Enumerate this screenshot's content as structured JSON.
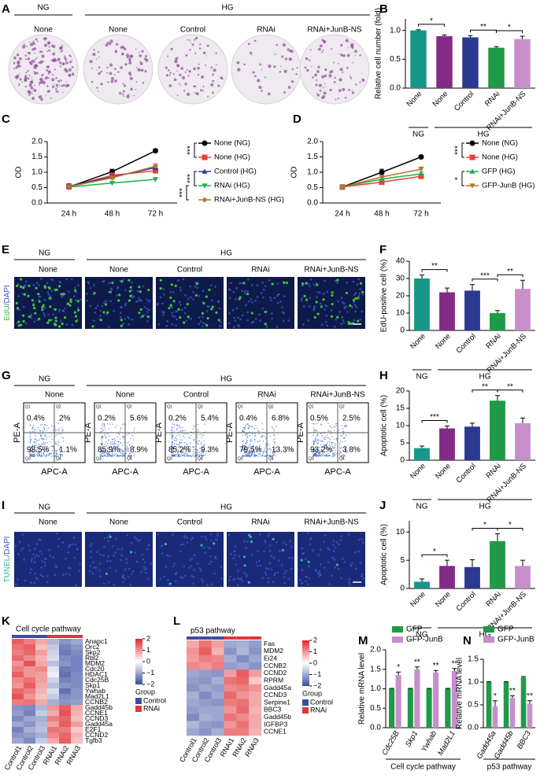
{
  "panel_letters": [
    "A",
    "B",
    "C",
    "D",
    "E",
    "F",
    "G",
    "H",
    "I",
    "J",
    "K",
    "L",
    "M",
    "N"
  ],
  "image_panels": [
    {
      "group_labels": [
        "NG",
        "HG"
      ],
      "conditions": [
        "None",
        "None",
        "Control",
        "RNAi",
        "RNAi+JunB-NS"
      ]
    },
    {
      "group_labels": [
        "NG",
        "HG"
      ],
      "conditions": [
        "None",
        "None",
        "Control",
        "RNAi",
        "RNAi+JunB-NS"
      ],
      "stain": [
        "EdU",
        "/DAPI"
      ],
      "stain_colors": [
        "#3ec43e",
        "#3a57c4"
      ]
    },
    {
      "group_labels": [
        "NG",
        "HG"
      ],
      "conditions": [
        "None",
        "None",
        "Control",
        "RNAi",
        "RNAi+JunB-NS"
      ],
      "stain": [
        "TUNEL",
        "/DAPI"
      ],
      "stain_colors": [
        "#2fb39a",
        "#3a57c4"
      ]
    }
  ],
  "flow": {
    "group_labels": [
      "NG",
      "HG"
    ],
    "conditions": [
      "None",
      "None",
      "Control",
      "RNAi",
      "RNAi+JunB-NS"
    ],
    "y_label": "PE-A",
    "x_label": "APC-A",
    "quadrants": [
      "Q1",
      "Q2",
      "Q3",
      "Q4"
    ],
    "percentages": [
      [
        "0.4%",
        "2%",
        "98.5%",
        "1.1%"
      ],
      [
        "0.2%",
        "5.6%",
        "85.9%",
        "8.9%"
      ],
      [
        "0.2%",
        "5.4%",
        "85.2%",
        "9.3%"
      ],
      [
        "0.4%",
        "6.8%",
        "79.5%",
        "13.3%"
      ],
      [
        "0.5%",
        "2.5%",
        "93.2%",
        "3.8%"
      ]
    ]
  },
  "chart_data": [
    {
      "type": "bar",
      "y_label": "Relative cell number (fold)",
      "categories": [
        "None",
        "None",
        "Control",
        "RNAi",
        "RNAi+JunB-NS"
      ],
      "colors": [
        "#17968c",
        "#862a88",
        "#2b3990",
        "#1f9a48",
        "#c78fc9"
      ],
      "values": [
        1.0,
        0.9,
        0.88,
        0.7,
        0.85
      ],
      "errors": [
        0.01,
        0.02,
        0.03,
        0.02,
        0.05
      ],
      "ylim": [
        0,
        1.2
      ],
      "yticks": [
        {
          "value": 0,
          "label": "0.0"
        },
        0.5,
        {
          "value": 1,
          "label": "1.0"
        }
      ],
      "significance": [
        {
          "from": 0,
          "to": 1,
          "label": "*"
        },
        {
          "from": 2,
          "to": 3,
          "label": "**"
        },
        {
          "from": 3,
          "to": 4,
          "label": "*"
        }
      ],
      "groups": [
        {
          "label": "NG",
          "from": 0,
          "to": 0
        },
        {
          "label": "HG",
          "from": 1,
          "to": 4
        }
      ]
    },
    {
      "type": "line",
      "y_label": "OD",
      "categories": [
        "24 h",
        "48 h",
        "72 h"
      ],
      "ylim": [
        0,
        2
      ],
      "yticks": [
        {
          "value": 0,
          "label": "0.0"
        },
        0.5,
        {
          "value": 1,
          "label": "1.0"
        },
        1.5,
        {
          "value": 2,
          "label": "2.0"
        }
      ],
      "series": [
        {
          "name": "None (NG)",
          "color": "#000000",
          "marker": "circle",
          "values": [
            0.52,
            1.02,
            1.7
          ],
          "errors": [
            0.05,
            0.08,
            0.06
          ]
        },
        {
          "name": "None (HG)",
          "color": "#e8413c",
          "marker": "square",
          "values": [
            0.53,
            0.9,
            1.05
          ],
          "errors": [
            0.04,
            0.06,
            0.07
          ]
        },
        {
          "name": "Control (HG)",
          "color": "#2b3990",
          "marker": "triangle",
          "values": [
            0.55,
            0.85,
            1.15
          ],
          "errors": [
            0.08,
            0.07,
            0.08
          ]
        },
        {
          "name": "RNAi (HG)",
          "color": "#1fb04b",
          "marker": "triangle-down",
          "values": [
            0.52,
            0.65,
            0.77
          ],
          "errors": [
            0.03,
            0.04,
            0.05
          ]
        },
        {
          "name": "RNAi+JunB-NS (HG)",
          "color": "#b5752f",
          "marker": "diamond",
          "values": [
            0.53,
            0.82,
            1.2
          ],
          "errors": [
            0.04,
            0.06,
            0.08
          ]
        }
      ],
      "significance": [
        {
          "from": 0,
          "to": 1,
          "label": "***"
        },
        {
          "from": 2,
          "to": 3,
          "label": "***"
        },
        {
          "from": 3,
          "to": 4,
          "label": "***"
        }
      ]
    },
    {
      "type": "line",
      "y_label": "OD",
      "categories": [
        "24 h",
        "48 h",
        "72 h"
      ],
      "ylim": [
        0,
        2
      ],
      "yticks": [
        {
          "value": 0,
          "label": "0.0"
        },
        0.5,
        {
          "value": 1,
          "label": "1.0"
        },
        1.5,
        {
          "value": 2,
          "label": "2.0"
        }
      ],
      "series": [
        {
          "name": "None (NG)",
          "color": "#000000",
          "marker": "circle",
          "values": [
            0.52,
            1.0,
            1.5
          ],
          "errors": [
            0.05,
            0.1,
            0.05
          ]
        },
        {
          "name": "None (HG)",
          "color": "#e8413c",
          "marker": "square",
          "values": [
            0.52,
            0.68,
            0.87
          ],
          "errors": [
            0.04,
            0.05,
            0.05
          ]
        },
        {
          "name": "GFP (HG)",
          "color": "#1fb04b",
          "marker": "triangle",
          "values": [
            0.52,
            0.78,
            0.95
          ],
          "errors": [
            0.04,
            0.05,
            0.06
          ]
        },
        {
          "name": "GFP-JunB (HG)",
          "color": "#b5752f",
          "marker": "triangle-down",
          "values": [
            0.52,
            0.85,
            1.1
          ],
          "errors": [
            0.04,
            0.06,
            0.07
          ]
        }
      ],
      "significance": [
        {
          "from": 0,
          "to": 1,
          "label": "***"
        },
        {
          "from": 2,
          "to": 3,
          "label": "*"
        }
      ]
    },
    {
      "type": "bar",
      "y_label": "EdU-positive cell (%)",
      "categories": [
        "None",
        "None",
        "Control",
        "RNAi",
        "RNAi+JunB-NS"
      ],
      "colors": [
        "#17968c",
        "#862a88",
        "#2b3990",
        "#1f9a48",
        "#c78fc9"
      ],
      "values": [
        30,
        22,
        23,
        10,
        24
      ],
      "errors": [
        2,
        2.5,
        3.5,
        1.5,
        5
      ],
      "ylim": [
        0,
        40
      ],
      "yticks": [
        0,
        10,
        20,
        30,
        40
      ],
      "significance": [
        {
          "from": 0,
          "to": 1,
          "label": "**"
        },
        {
          "from": 2,
          "to": 3,
          "label": "***"
        },
        {
          "from": 3,
          "to": 4,
          "label": "**"
        }
      ],
      "groups": [
        {
          "label": "NG",
          "from": 0,
          "to": 0
        },
        {
          "label": "HG",
          "from": 1,
          "to": 4
        }
      ]
    },
    {
      "type": "bar",
      "y_label": "Apoptotic cell (%)",
      "categories": [
        "None",
        "None",
        "Control",
        "RNAi",
        "RNAi+JunB-NS"
      ],
      "colors": [
        "#17968c",
        "#862a88",
        "#2b3990",
        "#1f9a48",
        "#c78fc9"
      ],
      "values": [
        3.5,
        9.2,
        9.7,
        17.2,
        10.7
      ],
      "errors": [
        0.6,
        0.7,
        1.0,
        1.5,
        1.5
      ],
      "ylim": [
        0,
        20
      ],
      "yticks": [
        0,
        5,
        10,
        15,
        20
      ],
      "significance": [
        {
          "from": 0,
          "to": 1,
          "label": "***"
        },
        {
          "from": 2,
          "to": 3,
          "label": "**"
        },
        {
          "from": 3,
          "to": 4,
          "label": "**"
        }
      ],
      "groups": [
        {
          "label": "NG",
          "from": 0,
          "to": 0
        },
        {
          "label": "HG",
          "from": 1,
          "to": 4
        }
      ]
    },
    {
      "type": "bar",
      "y_label": "Apoptotic cell (%)",
      "categories": [
        "None",
        "None",
        "Control",
        "RNAi",
        "RNAi+JunB-NS"
      ],
      "colors": [
        "#17968c",
        "#862a88",
        "#2b3990",
        "#1f9a48",
        "#c78fc9"
      ],
      "values": [
        1.2,
        4.0,
        3.8,
        8.4,
        4.0
      ],
      "errors": [
        0.5,
        1.0,
        1.3,
        1.3,
        1.0
      ],
      "ylim": [
        0,
        12
      ],
      "yticks": [
        0,
        5,
        10
      ],
      "significance": [
        {
          "from": 0,
          "to": 1,
          "label": "*"
        },
        {
          "from": 2,
          "to": 3,
          "label": "*"
        },
        {
          "from": 3,
          "to": 4,
          "label": "*"
        }
      ],
      "groups": [
        {
          "label": "NG",
          "from": 0,
          "to": 0
        },
        {
          "label": "HG",
          "from": 1,
          "to": 4
        }
      ]
    },
    {
      "type": "heatmap",
      "title": "Cell cycle pathway",
      "columns": [
        "Control1",
        "Control2",
        "Control3",
        "RNAi1",
        "RNAi2",
        "RNAi3"
      ],
      "rows": [
        "Anapc1",
        "Orc2",
        "Skp2",
        "Rbl2",
        "MDM2",
        "Cdc20",
        "HDAC1",
        "Cdc25B",
        "Skp1",
        "Ywhab",
        "Mad2L1",
        "CCNB2",
        "Gadd45b",
        "CCNE1",
        "CCND3",
        "Gadd45a",
        "E2F1",
        "CCND2",
        "Tgfb3"
      ],
      "values": [
        [
          1.5,
          1.2,
          0.8,
          -0.8,
          -1.2,
          -1.0
        ],
        [
          1.3,
          1.5,
          0.6,
          -0.6,
          -1.4,
          -1.2
        ],
        [
          1.2,
          1.4,
          0.9,
          -0.5,
          -1.5,
          -1.3
        ],
        [
          1.4,
          1.1,
          0.7,
          -0.4,
          -1.3,
          -1.4
        ],
        [
          1.0,
          1.6,
          0.8,
          -0.7,
          -1.2,
          -1.4
        ],
        [
          1.2,
          1.0,
          1.1,
          -0.3,
          -1.5,
          -1.4
        ],
        [
          1.5,
          1.0,
          0.9,
          -0.2,
          -1.6,
          -1.3
        ],
        [
          1.1,
          1.3,
          0.9,
          -0.5,
          -1.4,
          -1.3
        ],
        [
          1.0,
          1.5,
          0.8,
          -0.7,
          -1.2,
          -1.3
        ],
        [
          1.4,
          1.2,
          0.7,
          -0.4,
          -1.6,
          -1.2
        ],
        [
          1.6,
          1.0,
          0.6,
          -0.6,
          -1.3,
          -1.2
        ],
        [
          1.2,
          1.3,
          0.8,
          -0.9,
          -1.2,
          -1.1
        ],
        [
          -1.2,
          -1.3,
          -0.8,
          1.0,
          1.5,
          0.8
        ],
        [
          -1.1,
          -1.4,
          -0.6,
          0.8,
          1.6,
          0.7
        ],
        [
          -1.3,
          -1.0,
          -0.9,
          1.2,
          1.4,
          0.6
        ],
        [
          -1.0,
          -1.2,
          -0.8,
          0.9,
          1.5,
          0.9
        ],
        [
          -1.4,
          -0.9,
          -0.7,
          1.3,
          1.2,
          0.5
        ],
        [
          -1.2,
          -1.1,
          -0.9,
          1.1,
          1.4,
          0.7
        ],
        [
          -1.0,
          -1.3,
          -0.6,
          0.8,
          1.5,
          0.6
        ]
      ],
      "zlim": [
        -2,
        2
      ],
      "colorscale": [
        "#3a4ea0",
        "#ffffff",
        "#e0282c"
      ],
      "colorbar_ticks": [
        2,
        1,
        0,
        {
          "value": -1,
          "label": "−1"
        },
        {
          "value": -2,
          "label": "−2"
        }
      ],
      "legend_title": "Group",
      "groups": [
        {
          "name": "Control",
          "color": "#3b4d9c"
        },
        {
          "name": "RNAi",
          "color": "#e0363a"
        }
      ],
      "column_groups": [
        0,
        0,
        0,
        1,
        1,
        1
      ],
      "highlight_rows": [
        7,
        8,
        9,
        10,
        15
      ],
      "highlight_color": "#e0282c"
    },
    {
      "type": "heatmap",
      "title": "p53 pathway",
      "columns": [
        "Control1",
        "Control2",
        "Control3",
        "RNAi1",
        "RNAi2",
        "RNAi3"
      ],
      "rows": [
        "Fas",
        "MDM2",
        "Ei24",
        "CCNB2",
        "CCND2",
        "RPRM",
        "Gadd45a",
        "CCND3",
        "Serpine1",
        "BBC3",
        "Gadd45b",
        "IGFBP3",
        "CCNE1"
      ],
      "values": [
        [
          0.8,
          1.3,
          0.9,
          -1.0,
          -0.9,
          -1.1
        ],
        [
          1.0,
          1.5,
          0.7,
          -1.2,
          -0.8,
          -1.2
        ],
        [
          0.9,
          1.2,
          1.1,
          -0.9,
          -1.3,
          -1.0
        ],
        [
          1.1,
          1.0,
          1.2,
          -1.1,
          -1.0,
          -1.2
        ],
        [
          -1.0,
          -1.1,
          -1.2,
          0.9,
          1.5,
          0.9
        ],
        [
          -1.1,
          -1.2,
          -0.9,
          1.3,
          1.4,
          0.5
        ],
        [
          -1.2,
          -1.0,
          -1.1,
          1.1,
          1.2,
          1.0
        ],
        [
          -0.9,
          -1.3,
          -1.0,
          1.4,
          1.0,
          0.8
        ],
        [
          -1.0,
          -1.1,
          -1.2,
          1.2,
          1.3,
          0.8
        ],
        [
          -1.1,
          -1.0,
          -1.0,
          1.0,
          1.4,
          0.7
        ],
        [
          -1.3,
          -0.9,
          -1.0,
          1.3,
          1.1,
          0.8
        ],
        [
          -0.8,
          -1.1,
          -1.2,
          1.0,
          1.3,
          0.8
        ],
        [
          -1.0,
          -1.2,
          -0.9,
          1.2,
          1.2,
          0.7
        ]
      ],
      "zlim": [
        -2,
        2
      ],
      "colorscale": [
        "#3a4ea0",
        "#ffffff",
        "#e0282c"
      ],
      "colorbar_ticks": [
        2,
        1,
        0,
        {
          "value": -1,
          "label": "−1"
        },
        {
          "value": -2,
          "label": "−2"
        }
      ],
      "legend_title": "Group",
      "groups": [
        {
          "name": "Control",
          "color": "#3b4d9c"
        },
        {
          "name": "RNAi",
          "color": "#e0363a"
        }
      ],
      "column_groups": [
        0,
        0,
        0,
        1,
        1,
        1
      ],
      "highlight_rows": [
        6,
        9,
        10
      ],
      "highlight_color": "#e0282c"
    },
    {
      "type": "grouped_bar",
      "y_label": "Relative mRNA level",
      "x_label": "Cell cycle pathway",
      "categories": [
        "Cdc25B",
        "Skp1",
        "Ywhab",
        "Mad2L1"
      ],
      "ylim": [
        0,
        2
      ],
      "yticks": [
        {
          "value": 0,
          "label": "0.0"
        },
        0.5,
        {
          "value": 1,
          "label": "1.0"
        },
        1.5,
        {
          "value": 2,
          "label": "2.0"
        }
      ],
      "series": [
        {
          "name": "GFP",
          "color": "#1f9a48",
          "values": [
            1,
            1,
            1,
            1
          ],
          "errors": [
            0.01,
            0.01,
            0.01,
            0.01
          ]
        },
        {
          "name": "GFP-JunB",
          "color": "#c78fc9",
          "values": [
            1.35,
            1.5,
            1.42,
            1.46
          ],
          "errors": [
            0.08,
            0.06,
            0.05,
            0.06
          ]
        }
      ],
      "significance": [
        "*",
        "**",
        "**",
        "**"
      ]
    },
    {
      "type": "grouped_bar",
      "y_label": "Relative mRNA level",
      "x_label": "p53 pathway",
      "categories": [
        "Gadd45a",
        "Gadd45b",
        "BBC3"
      ],
      "ylim": [
        0,
        1.5
      ],
      "yticks": [
        {
          "value": 0,
          "label": "0.0"
        },
        0.5,
        {
          "value": 1,
          "label": "1.0"
        },
        1.5
      ],
      "series": [
        {
          "name": "GFP",
          "color": "#1f9a48",
          "values": [
            1,
            1,
            1.1
          ],
          "errors": [
            0.01,
            0.01,
            0.02
          ]
        },
        {
          "name": "GFP-JunB",
          "color": "#c78fc9",
          "values": [
            0.47,
            0.65,
            0.53
          ],
          "errors": [
            0.12,
            0.05,
            0.06
          ]
        }
      ],
      "significance": [
        "*",
        "**",
        "**"
      ]
    }
  ]
}
